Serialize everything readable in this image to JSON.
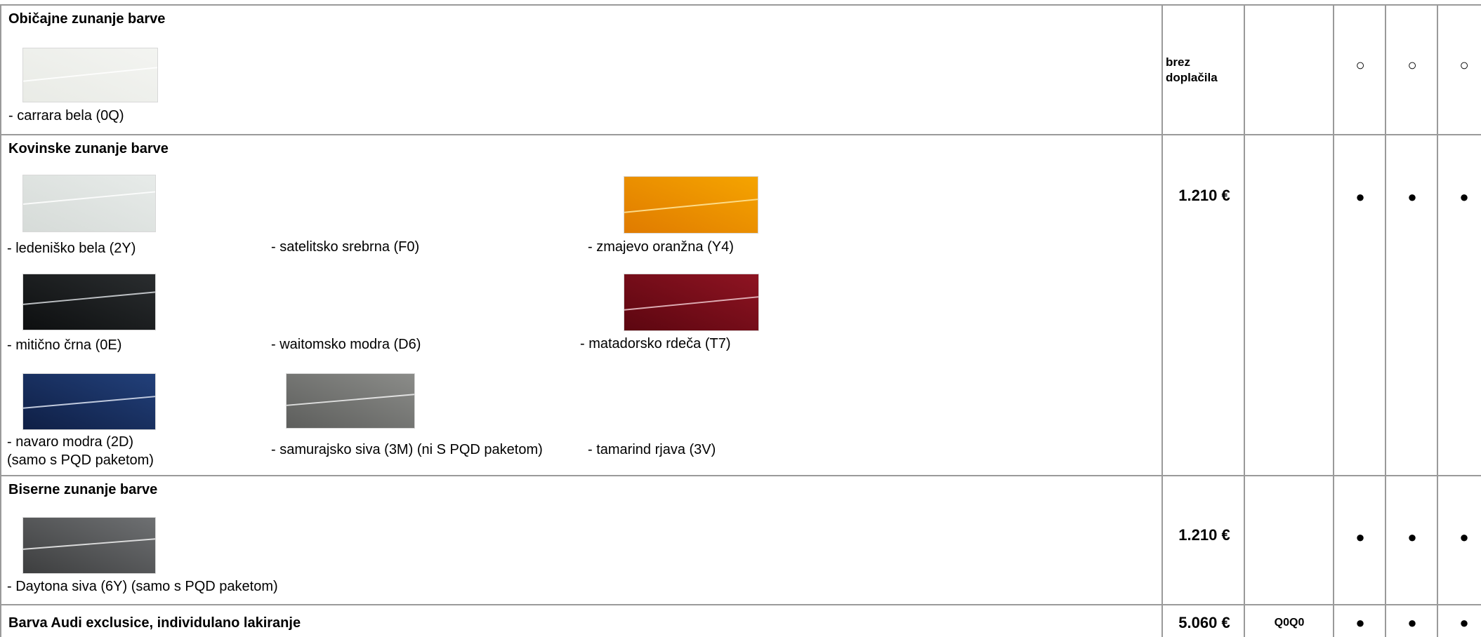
{
  "sections": [
    {
      "title": "Običajne zunanje barve",
      "price": "brez doplačila",
      "code": "",
      "marks": [
        "○",
        "○",
        "○"
      ],
      "items": [
        {
          "label": "- carrara bela (0Q)",
          "swatch": [
            "#e9ebe6",
            "#f3f4f1",
            "#ffffff"
          ]
        }
      ]
    },
    {
      "title": "Kovinske zunanje barve",
      "price": "1.210 €",
      "code": "",
      "marks": [
        "●",
        "●",
        "●"
      ],
      "items": [
        {
          "label": "- ledeniško bela (2Y)",
          "swatch": [
            "#d6dbd8",
            "#e7ebe9",
            "#ffffff"
          ]
        },
        {
          "label": "-  satelitsko srebrna (F0)"
        },
        {
          "label": "- zmajevo oranžna (Y4)",
          "swatch": [
            "#e07b00",
            "#f5a400",
            "#ffe9a0"
          ]
        },
        {
          "label": "- mitično črna (0E)",
          "swatch": [
            "#0d0f10",
            "#2a2d2f",
            "#d9dde0"
          ]
        },
        {
          "label": "- waitomsko modra (D6)"
        },
        {
          "label": "- matadorsko rdeča (T7)",
          "swatch": [
            "#5c0610",
            "#8e1422",
            "#f0c9cf"
          ]
        },
        {
          "label": "- navaro modra (2D)",
          "label2": "(samo s PQD paketom)",
          "swatch": [
            "#0f1f45",
            "#22407a",
            "#dfe6f5"
          ]
        },
        {
          "label": "- samurajsko siva (3M) (ni S PQD paketom)",
          "swatch": [
            "#5d5e5c",
            "#8b8c89",
            "#f2f2f2"
          ]
        },
        {
          "label": "- tamarind rjava (3V)"
        }
      ]
    },
    {
      "title": "Biserne zunanje barve",
      "price": "1.210 €",
      "code": "",
      "marks": [
        "●",
        "●",
        "●"
      ],
      "items": [
        {
          "label": "-  Daytona siva (6Y) (samo s PQD paketom)",
          "swatch": [
            "#3d3e3f",
            "#6e7072",
            "#f2f2f2"
          ]
        }
      ]
    },
    {
      "title": "Barva Audi exclusice, individulano lakiranje",
      "price": "5.060 €",
      "code": "Q0Q0",
      "marks": [
        "●",
        "●",
        "●"
      ],
      "items": []
    }
  ]
}
